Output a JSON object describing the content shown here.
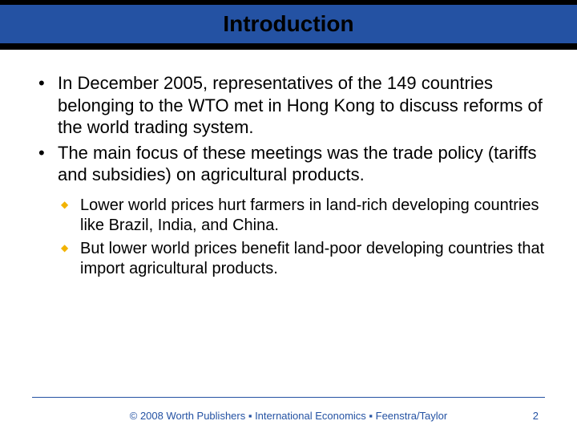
{
  "header": {
    "title": "Introduction",
    "blue_color": "#2452a3",
    "black_color": "#000000"
  },
  "bullets": [
    "In December 2005, representatives of the 149 countries belonging to the WTO met in Hong Kong to discuss reforms of the world trading system.",
    "The main focus of these meetings was the trade policy (tariffs and subsidies) on agricultural products."
  ],
  "sub_bullets": [
    "Lower world prices hurt farmers in land-rich developing countries like Brazil, India, and China.",
    "But lower world prices benefit land-poor developing countries that import agricultural products."
  ],
  "footer": {
    "text": "© 2008 Worth Publishers ▪ International Economics ▪ Feenstra/Taylor",
    "page": "2"
  },
  "style": {
    "title_fontsize": 28,
    "body_fontsize": 22,
    "sub_fontsize": 20,
    "footer_fontsize": 13,
    "sub_bullet_color": "#f2b300",
    "background": "#ffffff"
  }
}
